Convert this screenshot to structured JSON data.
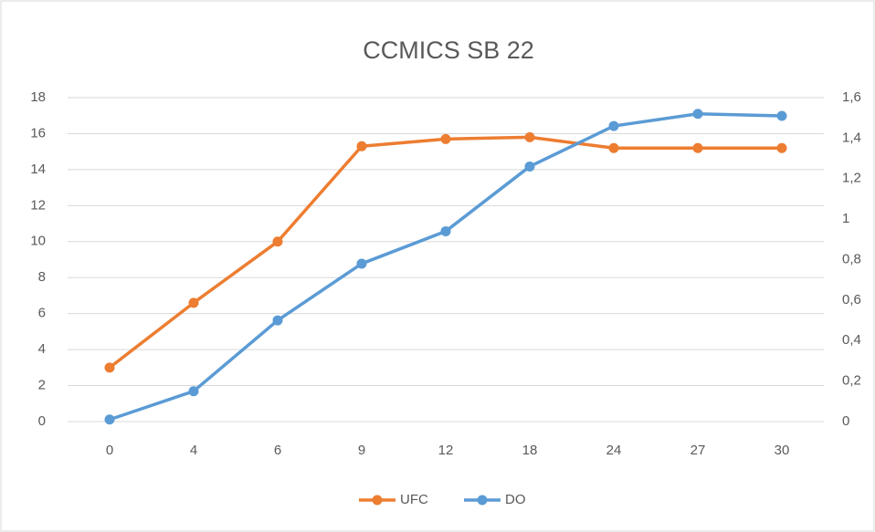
{
  "chart_data": {
    "type": "line",
    "title": "CCMICS SB 22",
    "categories": [
      "0",
      "4",
      "6",
      "9",
      "12",
      "18",
      "24",
      "27",
      "30"
    ],
    "series": [
      {
        "name": "UFC",
        "color": "#ed7d31",
        "values": [
          3,
          6.6,
          10,
          15.3,
          15.7,
          15.8,
          15.2,
          15.2,
          15.2
        ]
      },
      {
        "name": "DO",
        "color": "#5b9bd5",
        "axis": "y2",
        "values": [
          0.01,
          0.15,
          0.5,
          0.78,
          0.94,
          1.26,
          1.46,
          1.52,
          1.51
        ]
      }
    ],
    "ylim": [
      0,
      18
    ],
    "yticks": [
      0,
      2,
      4,
      6,
      8,
      10,
      12,
      14,
      16,
      18
    ],
    "y2lim": [
      0,
      1.6
    ],
    "y2ticks": [
      0,
      {
        "value": 0.2,
        "label": "0,2"
      },
      {
        "value": 0.4,
        "label": "0,4"
      },
      {
        "value": 0.6,
        "label": "0,6"
      },
      {
        "value": 0.8,
        "label": "0,8"
      },
      1,
      {
        "value": 1.2,
        "label": "1,2"
      },
      {
        "value": 1.4,
        "label": "1,4"
      },
      {
        "value": 1.6,
        "label": "1,6"
      }
    ],
    "grid": true,
    "legend": "bottom"
  }
}
